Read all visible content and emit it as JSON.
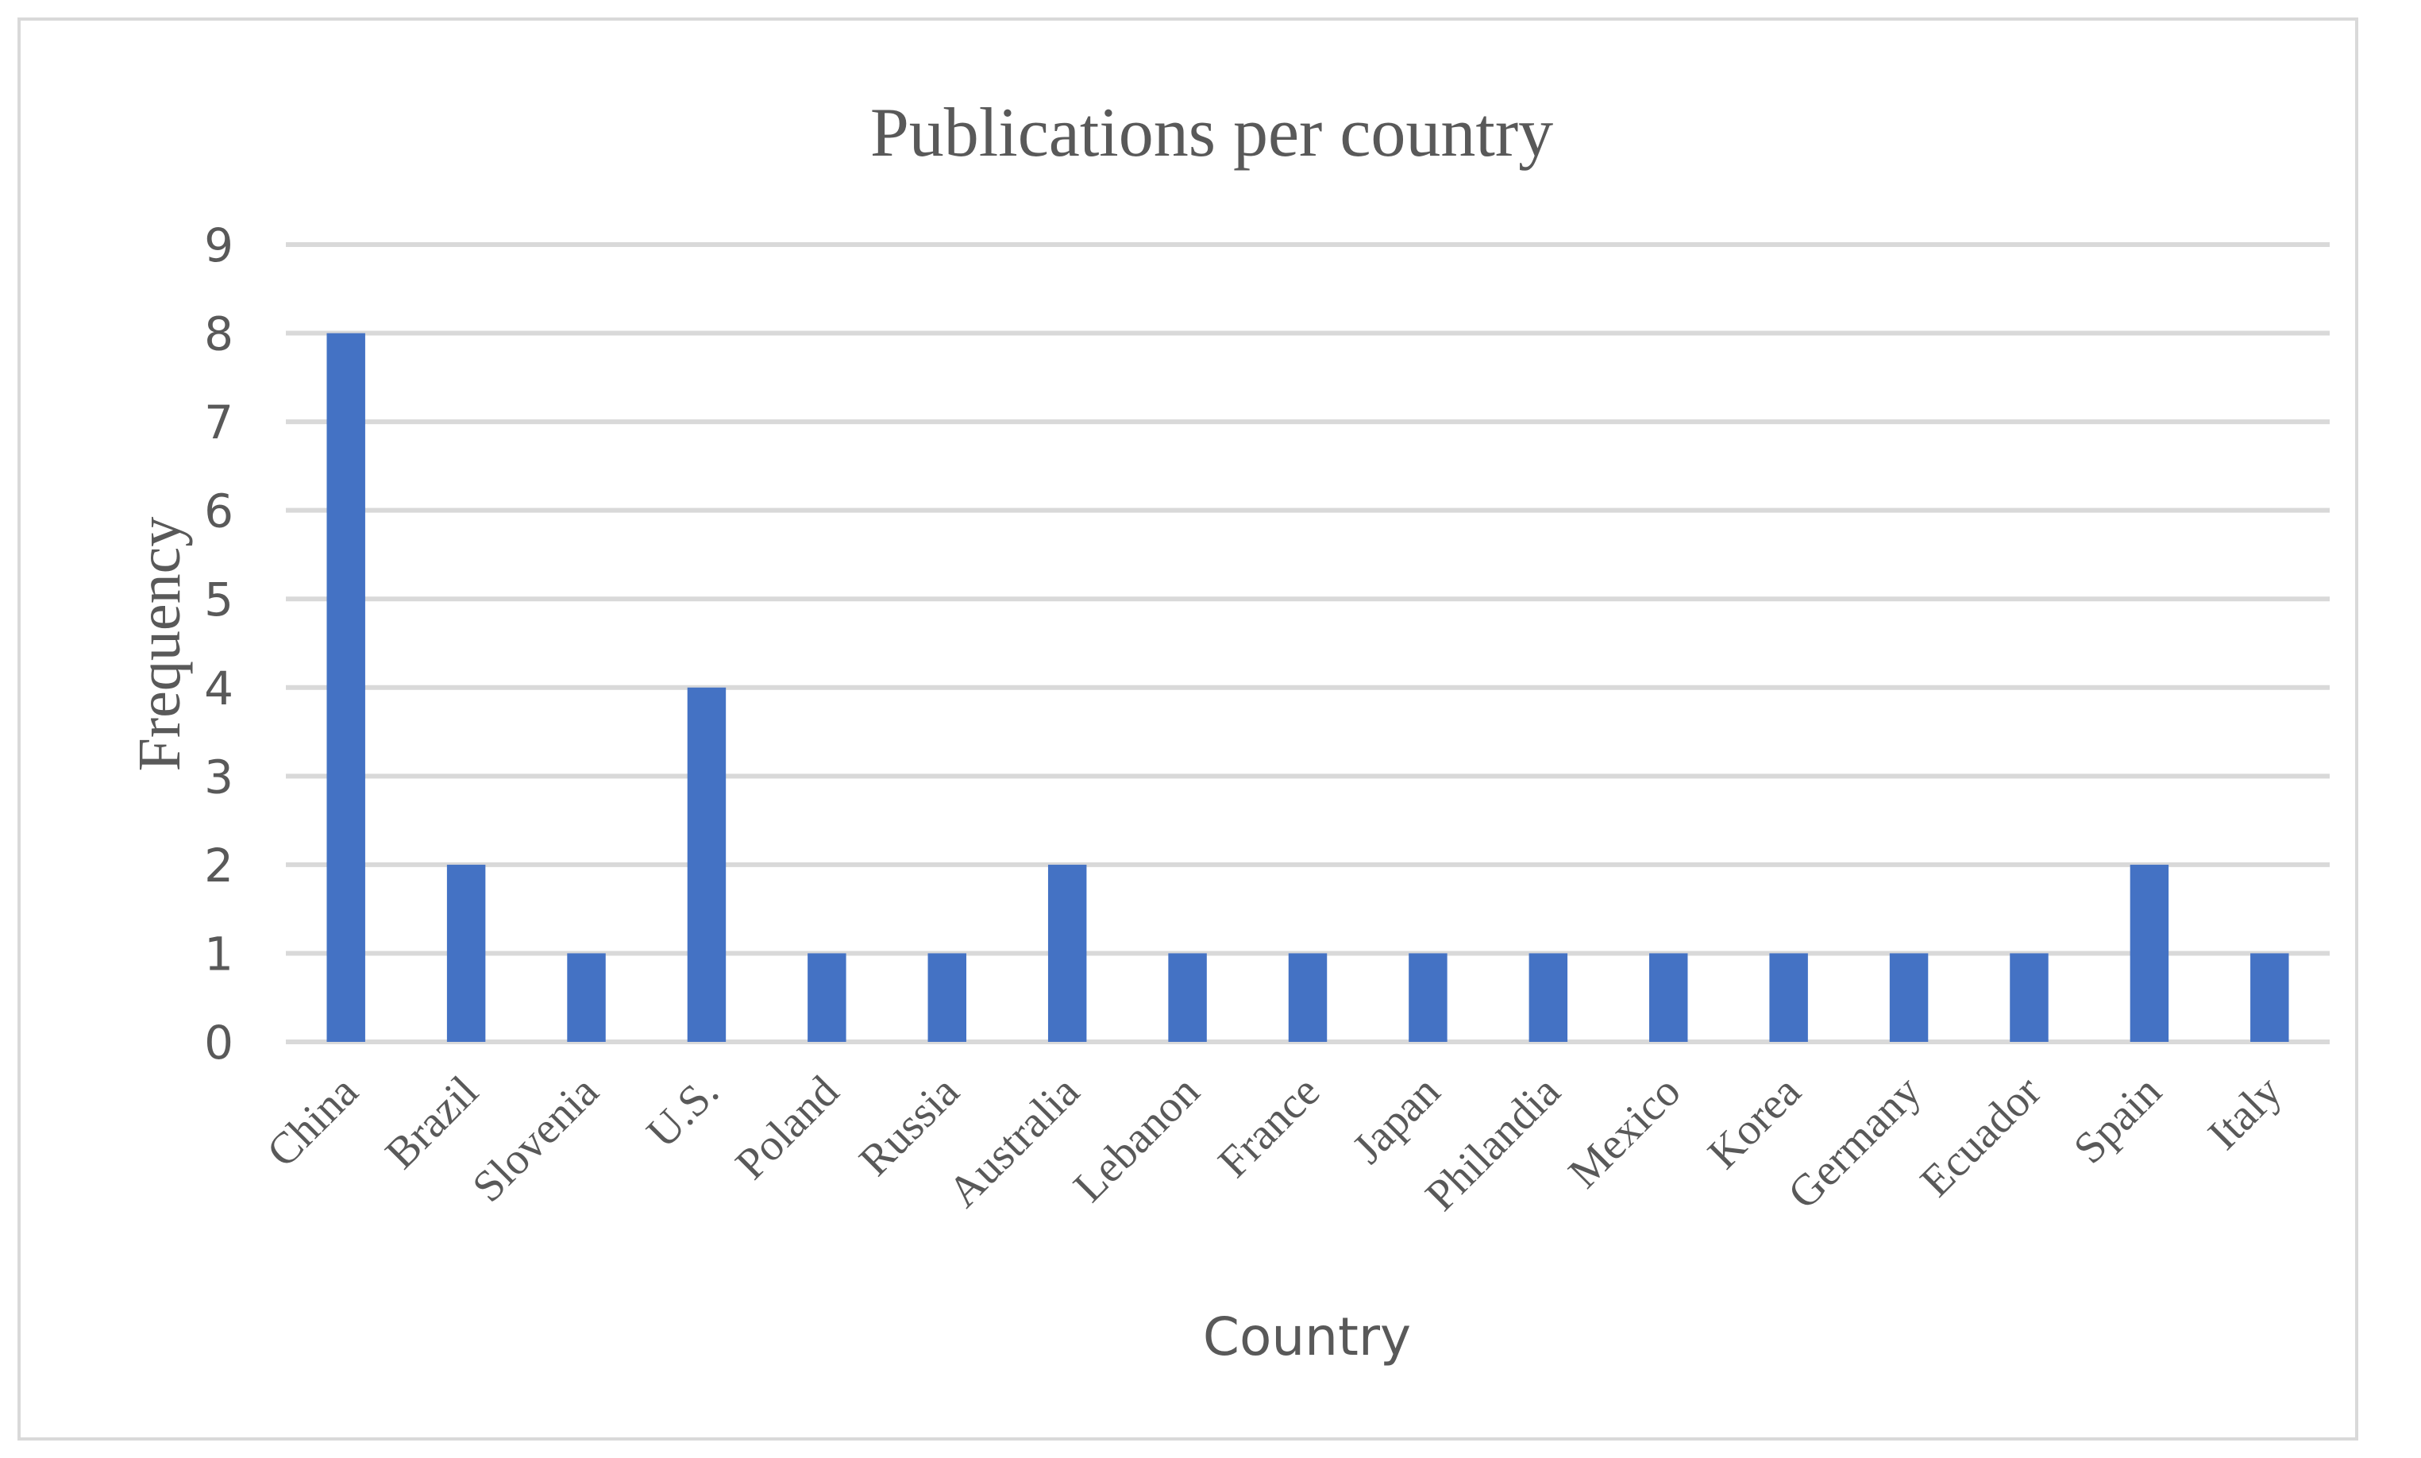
{
  "chart_data": {
    "type": "bar",
    "title": "Publications per country",
    "xlabel": "Country",
    "ylabel": "Frequency",
    "categories": [
      "China",
      "Brazil",
      "Slovenia",
      "U.S.",
      "Poland",
      "Russia",
      "Australia",
      "Lebanon",
      "France",
      "Japan",
      "Philandia",
      "Mexico",
      "Korea",
      "Germany",
      "Ecuador",
      "Spain",
      "Italy"
    ],
    "values": [
      8,
      2,
      1,
      4,
      1,
      1,
      2,
      1,
      1,
      1,
      1,
      1,
      1,
      1,
      1,
      2,
      1
    ],
    "ylim": [
      0,
      9
    ],
    "yticks": [
      "0",
      "1",
      "2",
      "3",
      "4",
      "5",
      "6",
      "7",
      "8",
      "9"
    ],
    "grid": true,
    "legend": "none",
    "colors": {
      "bar": "#4472c4",
      "grid": "#d9d9d9",
      "text": "#595959",
      "border": "#d9d9d9"
    }
  }
}
